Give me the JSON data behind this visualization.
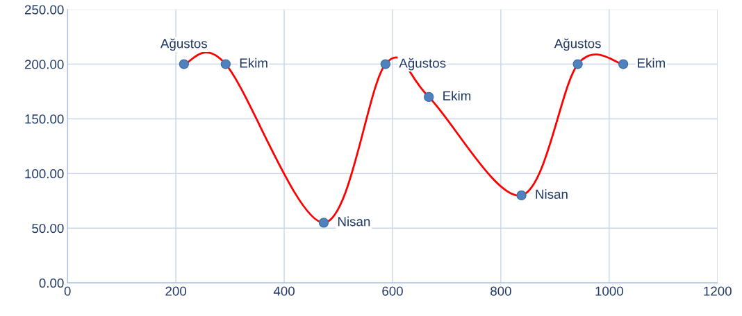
{
  "chart_data": {
    "type": "line",
    "x": [
      215,
      292,
      473,
      587,
      667,
      838,
      942,
      1026
    ],
    "series": [
      {
        "color": "#ff0000",
        "colors": [
          "#4f81bd",
          "#4f81bd",
          "#4f81bd",
          "#4f81bd",
          "#4f81bd",
          "#4f81bd",
          "#4f81bd",
          "#4f81bd"
        ],
        "values": [
          200,
          200,
          55,
          200,
          170,
          80,
          200,
          200
        ]
      }
    ],
    "xlim": [
      0,
      1200
    ],
    "xticks": [
      0,
      200,
      400,
      600,
      800,
      1000,
      1200
    ],
    "ylim": [
      0,
      250
    ],
    "yticks": [
      {
        "value": 0,
        "label": "0.00"
      },
      {
        "value": 50,
        "label": "50.00"
      },
      {
        "value": 100,
        "label": "100.00"
      },
      {
        "value": 150,
        "label": "150.00"
      },
      {
        "value": 200,
        "label": "200.00"
      },
      {
        "value": 250,
        "label": "250.00"
      }
    ],
    "grid": true,
    "marker": "circle",
    "line_style": "solid",
    "legend": false,
    "annotations": [
      {
        "text": "Ağustos",
        "x": 215,
        "y": 200
      },
      {
        "text": "Ekim",
        "x": 292,
        "y": 200
      },
      {
        "text": "Nisan",
        "x": 473,
        "y": 55
      },
      {
        "text": "Ağustos",
        "x": 587,
        "y": 200
      },
      {
        "text": "Ekim",
        "x": 667,
        "y": 170
      },
      {
        "text": "Nisan",
        "x": 838,
        "y": 80
      },
      {
        "text": "Ağustos",
        "x": 942,
        "y": 200
      },
      {
        "text": "Ekim",
        "x": 1026,
        "y": 200
      }
    ]
  }
}
